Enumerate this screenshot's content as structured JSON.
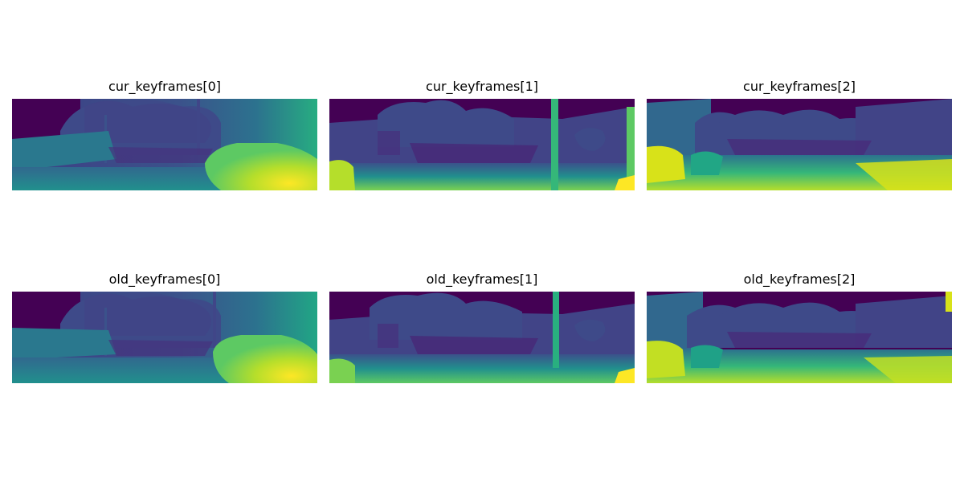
{
  "panels": [
    {
      "title": "cur_keyframes[0]",
      "image_alt": "Depth map rendered with viridis colormap: street scene with trees, wall on left and car on right (near = yellow, far = purple)"
    },
    {
      "title": "cur_keyframes[1]",
      "image_alt": "Depth map rendered with viridis colormap: road with trees, building and a pole on the right, car at left edge"
    },
    {
      "title": "cur_keyframes[2]",
      "image_alt": "Depth map rendered with viridis colormap: road with trees and building, car at left"
    },
    {
      "title": "old_keyframes[0]",
      "image_alt": "Depth map rendered with viridis colormap: street scene with trees, wall on left and car on right"
    },
    {
      "title": "old_keyframes[1]",
      "image_alt": "Depth map rendered with viridis colormap: road with trees, building and a pole, car at left edge"
    },
    {
      "title": "old_keyframes[2]",
      "image_alt": "Depth map rendered with viridis colormap: road with trees and building, car at left"
    }
  ],
  "colormap": {
    "name": "viridis",
    "far": "#440154",
    "mid_far": "#3b528b",
    "mid": "#21908d",
    "mid_near": "#5dc963",
    "near": "#fde725"
  }
}
